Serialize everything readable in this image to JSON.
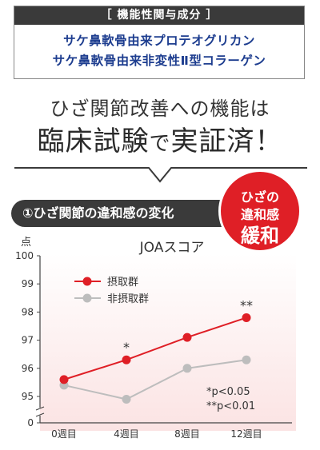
{
  "ingredients": {
    "header": "［ 機能性関与成分 ］",
    "items": [
      "サケ鼻軟骨由来プロテオグリカン",
      "サケ鼻軟骨由来非変性Ⅱ型コラーゲン"
    ]
  },
  "headline": {
    "line1": "ひざ関節改善への機能は",
    "line2_main": "臨床試験",
    "line2_small": "で",
    "line2_end": "実証済！"
  },
  "section": {
    "title": "①ひざ関節の違和感の変化"
  },
  "badge": {
    "line1": "ひざの",
    "line2": "違和感",
    "line3": "緩和"
  },
  "colors": {
    "intake": "#df1f26",
    "placebo": "#bdbdbd",
    "dark": "#3a3a3a",
    "navy": "#1d3d8f"
  },
  "chart_data": {
    "type": "line",
    "title": "JOAスコア",
    "ylabel": "点",
    "xlabel": "",
    "categories": [
      "0週目",
      "4週目",
      "8週目",
      "12週目"
    ],
    "yticks": [
      "100",
      "99",
      "98",
      "97",
      "96",
      "95",
      "0"
    ],
    "y_axis_break": "between 95 and 0",
    "series": [
      {
        "name": "摂取群",
        "values": [
          95.6,
          96.3,
          97.1,
          97.8
        ],
        "color": "#df1f26"
      },
      {
        "name": "非摂取群",
        "values": [
          95.4,
          94.9,
          96.0,
          96.3
        ],
        "color": "#bdbdbd"
      }
    ],
    "significance_marks": [
      {
        "category": "4週目",
        "mark": "*"
      },
      {
        "category": "12週目",
        "mark": "**"
      }
    ],
    "footnotes": [
      "*p<0.05",
      "**p<0.01"
    ],
    "legend": "top-left"
  }
}
